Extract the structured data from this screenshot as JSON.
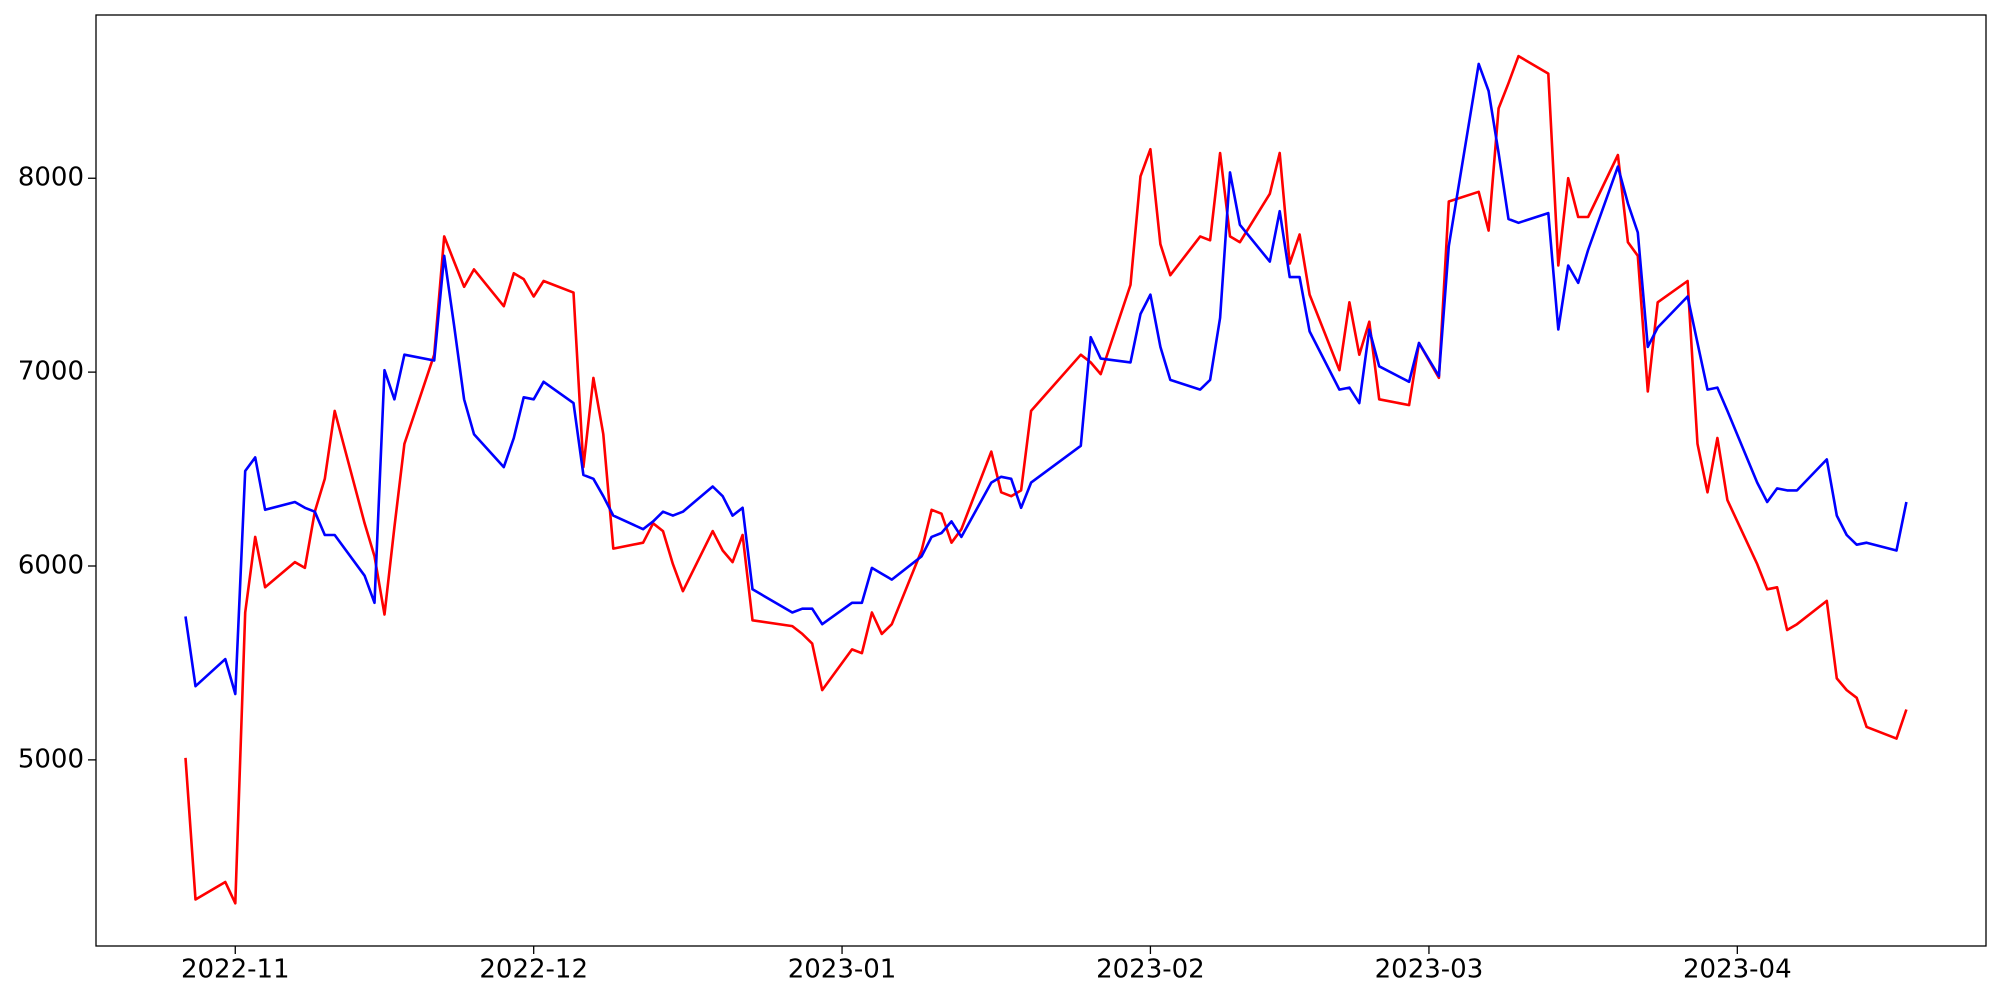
{
  "chart_data": {
    "type": "line",
    "x": [
      "2022-10-27",
      "2022-10-28",
      "2022-10-31",
      "2022-11-01",
      "2022-11-02",
      "2022-11-03",
      "2022-11-04",
      "2022-11-07",
      "2022-11-08",
      "2022-11-09",
      "2022-11-10",
      "2022-11-11",
      "2022-11-14",
      "2022-11-15",
      "2022-11-16",
      "2022-11-17",
      "2022-11-18",
      "2022-11-21",
      "2022-11-22",
      "2022-11-23",
      "2022-11-24",
      "2022-11-25",
      "2022-11-28",
      "2022-11-29",
      "2022-11-30",
      "2022-12-01",
      "2022-12-02",
      "2022-12-05",
      "2022-12-06",
      "2022-12-07",
      "2022-12-08",
      "2022-12-09",
      "2022-12-12",
      "2022-12-13",
      "2022-12-14",
      "2022-12-15",
      "2022-12-16",
      "2022-12-19",
      "2022-12-20",
      "2022-12-21",
      "2022-12-22",
      "2022-12-23",
      "2022-12-27",
      "2022-12-28",
      "2022-12-29",
      "2022-12-30",
      "2023-01-02",
      "2023-01-03",
      "2023-01-04",
      "2023-01-05",
      "2023-01-06",
      "2023-01-09",
      "2023-01-10",
      "2023-01-11",
      "2023-01-12",
      "2023-01-13",
      "2023-01-16",
      "2023-01-17",
      "2023-01-18",
      "2023-01-19",
      "2023-01-20",
      "2023-01-25",
      "2023-01-26",
      "2023-01-27",
      "2023-01-30",
      "2023-01-31",
      "2023-02-01",
      "2023-02-02",
      "2023-02-03",
      "2023-02-06",
      "2023-02-07",
      "2023-02-08",
      "2023-02-09",
      "2023-02-10",
      "2023-02-13",
      "2023-02-14",
      "2023-02-15",
      "2023-02-16",
      "2023-02-17",
      "2023-02-20",
      "2023-02-21",
      "2023-02-22",
      "2023-02-23",
      "2023-02-24",
      "2023-02-27",
      "2023-02-28",
      "2023-03-02",
      "2023-03-03",
      "2023-03-06",
      "2023-03-07",
      "2023-03-08",
      "2023-03-09",
      "2023-03-10",
      "2023-03-13",
      "2023-03-14",
      "2023-03-15",
      "2023-03-16",
      "2023-03-17",
      "2023-03-20",
      "2023-03-21",
      "2023-03-22",
      "2023-03-23",
      "2023-03-24",
      "2023-03-27",
      "2023-03-28",
      "2023-03-29",
      "2023-03-30",
      "2023-03-31",
      "2023-04-03",
      "2023-04-04",
      "2023-04-05",
      "2023-04-06",
      "2023-04-07",
      "2023-04-10",
      "2023-04-11",
      "2023-04-12",
      "2023-04-13",
      "2023-04-14",
      "2023-04-17",
      "2023-04-18"
    ],
    "series": [
      {
        "color": "#ff0000",
        "values": [
          5010,
          4280,
          4370,
          4260,
          5760,
          6150,
          5890,
          6020,
          5990,
          6280,
          6450,
          6800,
          6220,
          6050,
          5750,
          6200,
          6630,
          7090,
          7700,
          7570,
          7440,
          7530,
          7340,
          7510,
          7480,
          7390,
          7470,
          7410,
          6510,
          6970,
          6680,
          6090,
          6120,
          6220,
          6180,
          6010,
          5870,
          6180,
          6080,
          6020,
          6160,
          5720,
          5690,
          5650,
          5600,
          5360,
          5570,
          5550,
          5760,
          5650,
          5700,
          6080,
          6290,
          6270,
          6120,
          6190,
          6590,
          6380,
          6360,
          6390,
          6800,
          7090,
          7050,
          6990,
          7450,
          8010,
          8150,
          7660,
          7500,
          7700,
          7680,
          8130,
          7700,
          7670,
          7920,
          8130,
          7560,
          7710,
          7400,
          7010,
          7360,
          7090,
          7260,
          6860,
          6830,
          7150,
          6970,
          7880,
          7930,
          7730,
          8360,
          8490,
          8630,
          8540,
          7550,
          8000,
          7800,
          7800,
          8120,
          7670,
          7600,
          6900,
          7360,
          7470,
          6630,
          6380,
          6660,
          6340,
          6010,
          5880,
          5890,
          5670,
          5700,
          5820,
          5420,
          5360,
          5320,
          5170,
          5110,
          5260
        ]
      },
      {
        "color": "#0000ff",
        "values": [
          5740,
          5380,
          5520,
          5340,
          6490,
          6560,
          6290,
          6330,
          6300,
          6280,
          6160,
          6160,
          5950,
          5810,
          7010,
          6860,
          7090,
          7060,
          7600,
          7240,
          6860,
          6680,
          6510,
          6660,
          6870,
          6860,
          6950,
          6840,
          6470,
          6450,
          6360,
          6260,
          6190,
          6230,
          6280,
          6260,
          6280,
          6410,
          6360,
          6260,
          6300,
          5880,
          5760,
          5780,
          5780,
          5700,
          5810,
          5810,
          5990,
          5960,
          5930,
          6050,
          6150,
          6170,
          6230,
          6150,
          6430,
          6460,
          6450,
          6300,
          6430,
          6620,
          7180,
          7070,
          7050,
          7300,
          7400,
          7130,
          6960,
          6910,
          6960,
          7280,
          8030,
          7760,
          7570,
          7830,
          7490,
          7490,
          7210,
          6910,
          6920,
          6840,
          7220,
          7030,
          6950,
          7150,
          6980,
          7650,
          8590,
          8450,
          8130,
          7790,
          7770,
          7820,
          7220,
          7550,
          7460,
          7630,
          8060,
          7870,
          7720,
          7130,
          7230,
          7390,
          7150,
          6910,
          6920,
          6800,
          6430,
          6330,
          6400,
          6390,
          6390,
          6550,
          6260,
          6160,
          6110,
          6120,
          6080,
          6330
        ]
      }
    ],
    "xlim": [
      "2022-10-18",
      "2023-04-26"
    ],
    "xticks": [
      {
        "value": "2022-11-01",
        "label": "2022-11"
      },
      {
        "value": "2022-12-01",
        "label": "2022-12"
      },
      {
        "value": "2023-01-01",
        "label": "2023-01"
      },
      {
        "value": "2023-02-01",
        "label": "2023-02"
      },
      {
        "value": "2023-03-01",
        "label": "2023-03"
      },
      {
        "value": "2023-04-01",
        "label": "2023-04"
      }
    ],
    "ylim": [
      4040,
      8842
    ],
    "yticks": [
      5000,
      6000,
      7000,
      8000
    ],
    "grid": false
  }
}
